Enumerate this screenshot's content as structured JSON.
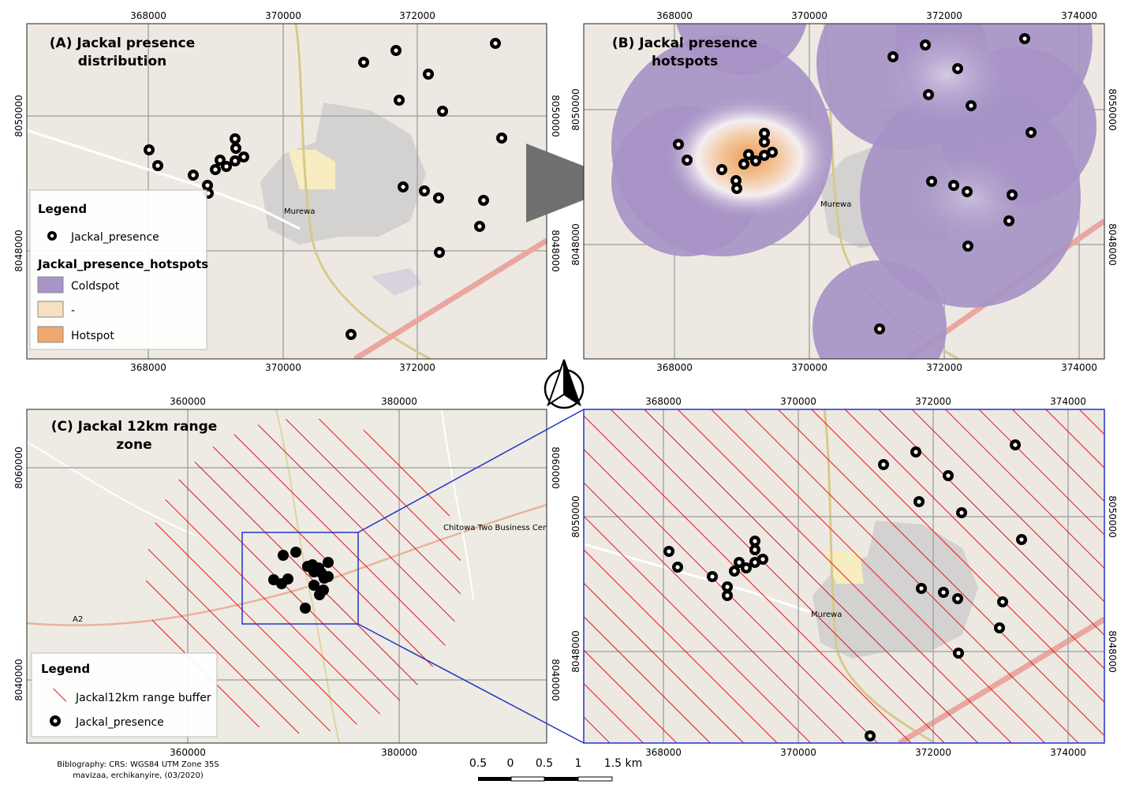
{
  "panel_a": {
    "title_line1": "(A) Jackal presence",
    "title_line2": "distribution",
    "x_ticks": [
      "368000",
      "370000",
      "372000"
    ],
    "y_ticks": [
      "8050000",
      "8048000"
    ],
    "town_label": "Murewa",
    "legend": {
      "title": "Legend",
      "presence_label": "Jackal_presence",
      "hotspots_title": "Jackal_presence_hotspots",
      "coldspot_label": "Coldspot",
      "neutral_label": "-",
      "hotspot_label": "Hotspot",
      "coldspot_color": "#a895c8",
      "neutral_color": "#f8dfc0",
      "hotspot_color": "#f0a870"
    },
    "points": [
      [
        628,
        55
      ],
      [
        461,
        79
      ],
      [
        502,
        64
      ],
      [
        543,
        94
      ],
      [
        506,
        127
      ],
      [
        561,
        141
      ],
      [
        636,
        175
      ],
      [
        189,
        190
      ],
      [
        200,
        210
      ],
      [
        298,
        176
      ],
      [
        299,
        188
      ],
      [
        279,
        203
      ],
      [
        309,
        199
      ],
      [
        298,
        204
      ],
      [
        287,
        211
      ],
      [
        273,
        215
      ],
      [
        245,
        222
      ],
      [
        263,
        235
      ],
      [
        264,
        245
      ],
      [
        511,
        237
      ],
      [
        538,
        242
      ],
      [
        556,
        251
      ],
      [
        613,
        254
      ],
      [
        608,
        287
      ],
      [
        557,
        320
      ],
      [
        445,
        424
      ]
    ]
  },
  "panel_b": {
    "title_line1": "(B) Jackal presence",
    "title_line2": "hotspots",
    "x_ticks": [
      "368000",
      "370000",
      "372000",
      "374000"
    ],
    "y_ticks": [
      "8050000",
      "8048000"
    ],
    "town_label": "Murewa",
    "points": [
      [
        1299,
        49
      ],
      [
        1132,
        72
      ],
      [
        1173,
        57
      ],
      [
        1214,
        87
      ],
      [
        1177,
        120
      ],
      [
        1231,
        134
      ],
      [
        1307,
        168
      ],
      [
        860,
        183
      ],
      [
        871,
        203
      ],
      [
        969,
        169
      ],
      [
        969,
        180
      ],
      [
        949,
        196
      ],
      [
        979,
        193
      ],
      [
        969,
        197
      ],
      [
        958,
        204
      ],
      [
        943,
        208
      ],
      [
        915,
        215
      ],
      [
        933,
        229
      ],
      [
        934,
        239
      ],
      [
        1181,
        230
      ],
      [
        1209,
        235
      ],
      [
        1226,
        243
      ],
      [
        1283,
        247
      ],
      [
        1279,
        280
      ],
      [
        1227,
        312
      ],
      [
        1115,
        417
      ]
    ]
  },
  "panel_c": {
    "title_line1": "(C) Jackal 12km range",
    "title_line2": "zone",
    "x_ticks": [
      "360000",
      "380000"
    ],
    "y_ticks": [
      "8060000",
      "8040000"
    ],
    "place_label": "Chitowa Two Business Center",
    "road_label": "A2",
    "legend": {
      "title": "Legend",
      "buffer_label": "Jackal12km range buffer",
      "presence_label": "Jackal_presence"
    },
    "points": [
      [
        375,
        700
      ],
      [
        359,
        704
      ],
      [
        416,
        713
      ],
      [
        396,
        716
      ],
      [
        390,
        718
      ],
      [
        404,
        720
      ],
      [
        407,
        726
      ],
      [
        398,
        725
      ],
      [
        347,
        735
      ],
      [
        365,
        734
      ],
      [
        357,
        740
      ],
      [
        398,
        742
      ],
      [
        411,
        733
      ],
      [
        416,
        731
      ],
      [
        410,
        748
      ],
      [
        405,
        754
      ],
      [
        387,
        771
      ]
    ]
  },
  "panel_d": {
    "x_ticks": [
      "368000",
      "370000",
      "372000",
      "374000"
    ],
    "y_ticks": [
      "8050000",
      "8048000"
    ],
    "town_label": "Murewa",
    "points": [
      [
        1287,
        564
      ],
      [
        1120,
        589
      ],
      [
        1161,
        573
      ],
      [
        1202,
        603
      ],
      [
        1165,
        636
      ],
      [
        1219,
        650
      ],
      [
        1295,
        684
      ],
      [
        848,
        699
      ],
      [
        859,
        719
      ],
      [
        957,
        686
      ],
      [
        957,
        697
      ],
      [
        937,
        713
      ],
      [
        967,
        709
      ],
      [
        957,
        713
      ],
      [
        946,
        720
      ],
      [
        931,
        724
      ],
      [
        903,
        731
      ],
      [
        922,
        744
      ],
      [
        922,
        755
      ],
      [
        1168,
        746
      ],
      [
        1196,
        751
      ],
      [
        1214,
        759
      ],
      [
        1271,
        763
      ],
      [
        1267,
        796
      ],
      [
        1215,
        828
      ],
      [
        1103,
        933
      ]
    ]
  },
  "bibliography": {
    "line1": "Biblography: CRS: WGS84 UTM Zone 35S",
    "line2": "mavizaa, erchikanyire, (03/2020)"
  },
  "scale_bar": {
    "labels": [
      "0.5",
      "0",
      "0.5",
      "1",
      "1.5 km"
    ]
  },
  "north_arrow": {
    "icon": "north-arrow-icon"
  }
}
